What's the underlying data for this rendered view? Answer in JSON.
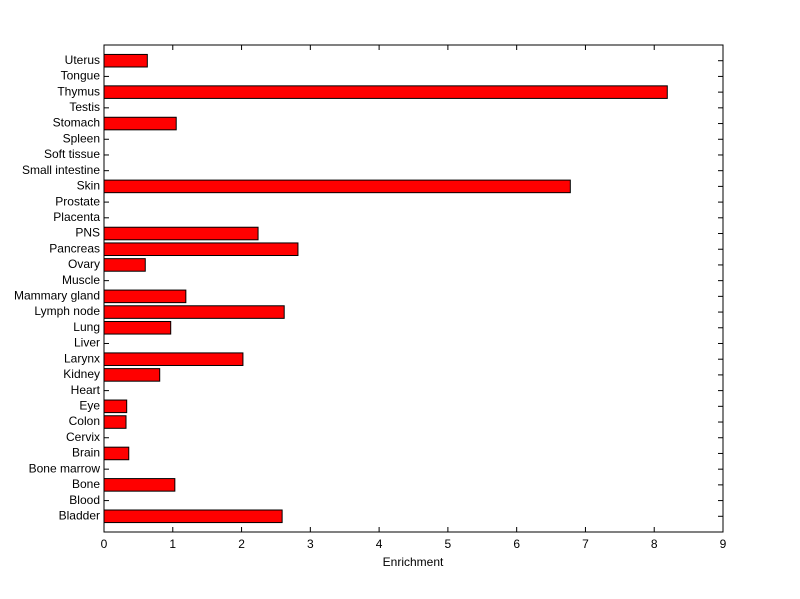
{
  "chart_data": {
    "type": "barh",
    "xlabel": "Enrichment",
    "categories": [
      "Bladder",
      "Blood",
      "Bone",
      "Bone marrow",
      "Brain",
      "Cervix",
      "Colon",
      "Eye",
      "Heart",
      "Kidney",
      "Larynx",
      "Liver",
      "Lung",
      "Lymph node",
      "Mammary gland",
      "Muscle",
      "Ovary",
      "Pancreas",
      "PNS",
      "Placenta",
      "Prostate",
      "Skin",
      "Small intestine",
      "Soft tissue",
      "Spleen",
      "Stomach",
      "Testis",
      "Thymus",
      "Tongue",
      "Uterus"
    ],
    "values": [
      2.59,
      0,
      1.03,
      0,
      0.36,
      0,
      0.32,
      0.33,
      0,
      0.81,
      2.02,
      0,
      0.97,
      2.62,
      1.19,
      0,
      0.6,
      2.82,
      2.24,
      0,
      0,
      6.78,
      0,
      0,
      0,
      1.05,
      0,
      8.19,
      0,
      0.63
    ],
    "color": "#ff0000",
    "xlim": [
      0,
      9
    ],
    "xticks": [
      0,
      1,
      2,
      3,
      4,
      5,
      6,
      7,
      8,
      9
    ]
  }
}
